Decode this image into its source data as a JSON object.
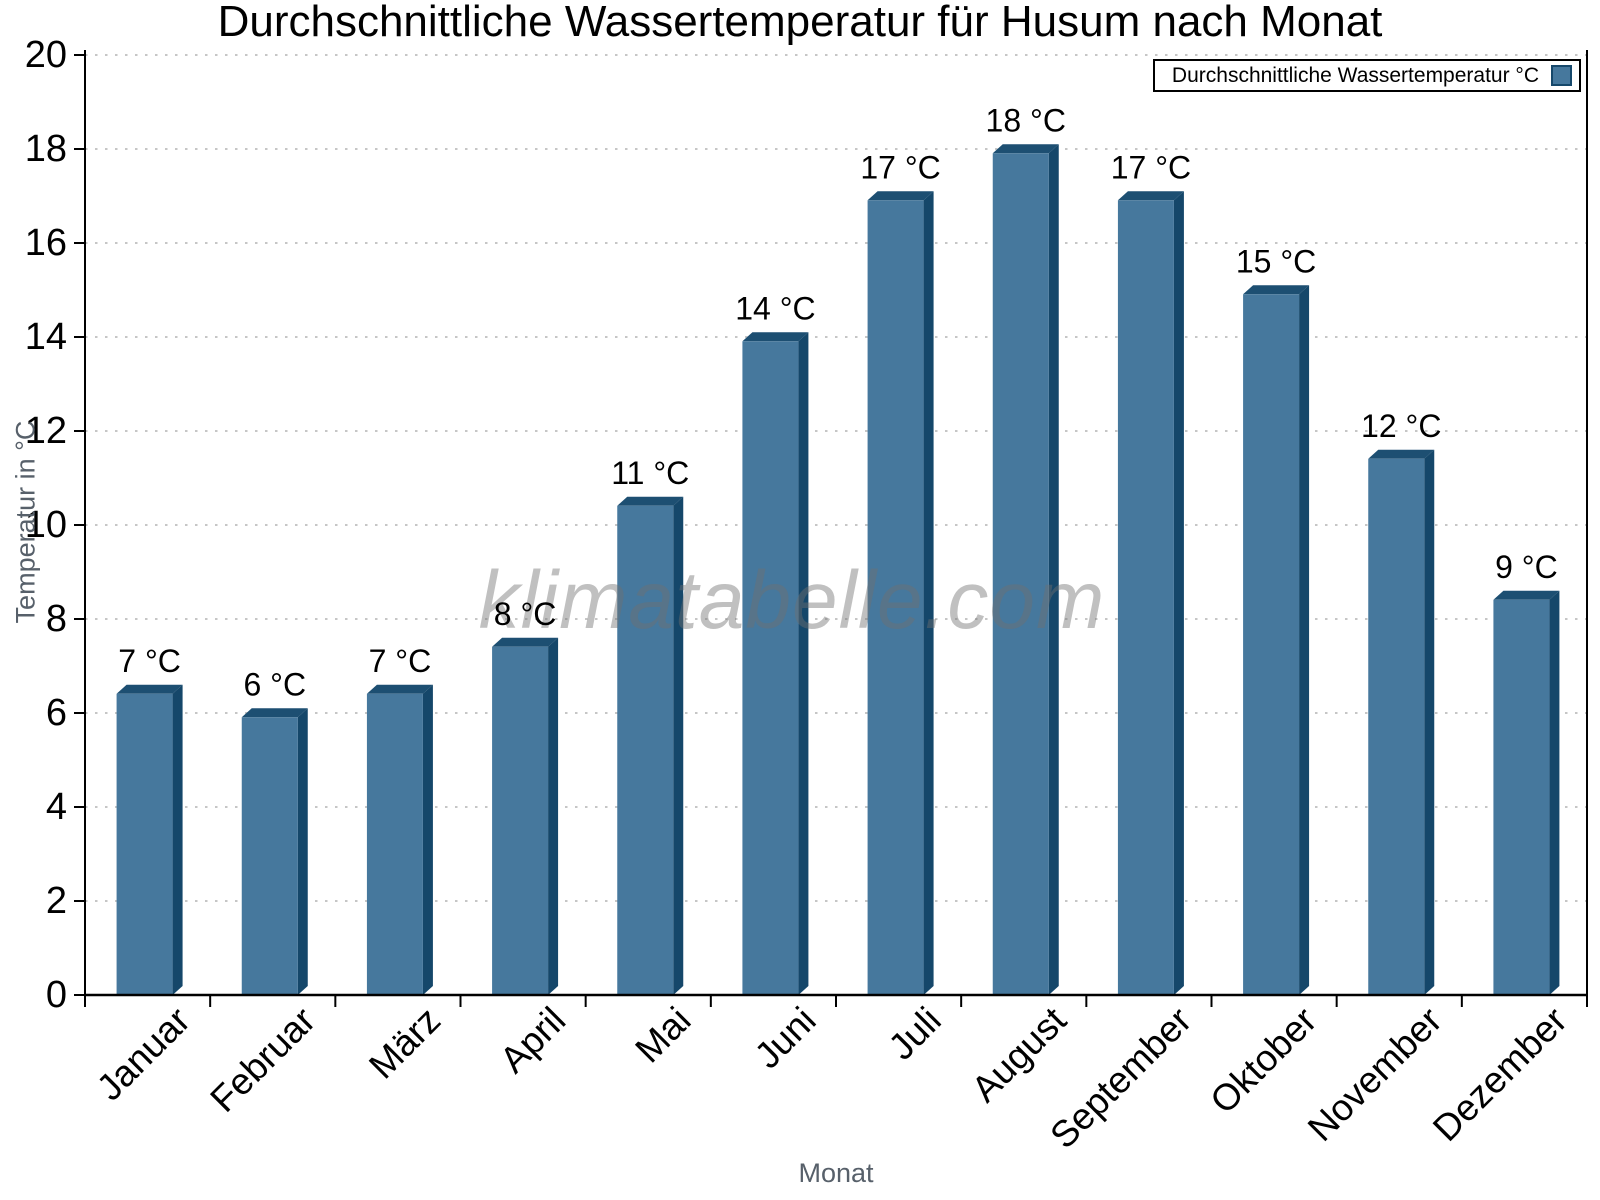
{
  "chart_data": {
    "type": "bar",
    "title": "Durchschnittliche Wassertemperatur für Husum nach Monat",
    "categories": [
      "Januar",
      "Februar",
      "März",
      "April",
      "Mai",
      "Juni",
      "Juli",
      "August",
      "September",
      "Oktober",
      "November",
      "Dezember"
    ],
    "values": [
      7,
      6,
      7,
      8,
      11,
      14,
      17,
      18,
      17,
      15,
      12,
      9
    ],
    "value_labels": [
      "7 °C",
      "6 °C",
      "7 °C",
      "8 °C",
      "11 °C",
      "14 °C",
      "17 °C",
      "18 °C",
      "17 °C",
      "15 °C",
      "12 °C",
      "9 °C"
    ],
    "bar_heights_drawn": [
      6.6,
      6.1,
      6.6,
      7.6,
      10.6,
      14.1,
      17.1,
      18.1,
      17.1,
      15.1,
      11.6,
      8.6
    ],
    "xlabel": "Monat",
    "ylabel": "Temperatur in °C",
    "ylim": [
      0,
      20
    ],
    "ytick_step": 2,
    "grid": "horizontal-dotted",
    "legend_label": "Durchschnittliche Wassertemperatur °C",
    "legend_position": "top-right",
    "watermark": "klimatabelle.com",
    "bar_color": "#46789d",
    "bar_side_color": "#15476a",
    "bar_top_color": "#1d4f72",
    "gridline_color": "#c6c6c6",
    "axis_color": "#000000",
    "label_color": "#000000",
    "axis_title_color": "#57606a",
    "watermark_color": "#6f6f6f"
  }
}
